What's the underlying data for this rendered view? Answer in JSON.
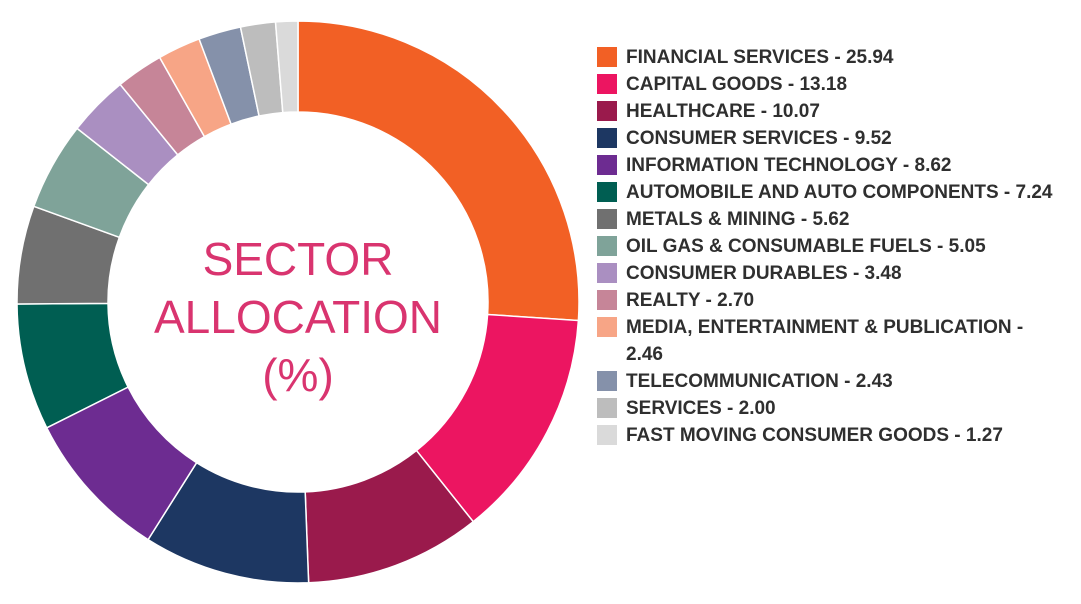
{
  "chart_data": {
    "type": "pie",
    "variant": "donut",
    "title_lines": [
      "SECTOR",
      "ALLOCATION",
      "(%)"
    ],
    "legend_placement": "right",
    "slices": [
      {
        "name": "FINANCIAL SERVICES",
        "value": 25.94,
        "label": "FINANCIAL SERVICES - 25.94",
        "color": "#f26025"
      },
      {
        "name": "CAPITAL GOODS",
        "value": 13.18,
        "label": "CAPITAL GOODS - 13.18",
        "color": "#ec1561"
      },
      {
        "name": "HEALTHCARE",
        "value": 10.07,
        "label": "HEALTHCARE - 10.07",
        "color": "#9a1a4c"
      },
      {
        "name": "CONSUMER SERVICES",
        "value": 9.52,
        "label": "CONSUMER SERVICES - 9.52",
        "color": "#1d3762"
      },
      {
        "name": "INFORMATION TECHNOLOGY",
        "value": 8.62,
        "label": "INFORMATION TECHNOLOGY - 8.62",
        "color": "#6d2c91"
      },
      {
        "name": "AUTOMOBILE AND AUTO COMPONENTS",
        "value": 7.24,
        "label": "AUTOMOBILE AND AUTO COMPONENTS - 7.24",
        "color": "#005e52"
      },
      {
        "name": "METALS & MINING",
        "value": 5.62,
        "label": "METALS & MINING - 5.62",
        "color": "#707070"
      },
      {
        "name": "OIL GAS & CONSUMABLE FUELS",
        "value": 5.05,
        "label": "OIL GAS & CONSUMABLE FUELS - 5.05",
        "color": "#7fa399"
      },
      {
        "name": "CONSUMER DURABLES",
        "value": 3.48,
        "label": "CONSUMER DURABLES - 3.48",
        "color": "#aa8fc1"
      },
      {
        "name": "REALTY",
        "value": 2.7,
        "label": "REALTY - 2.70",
        "color": "#c68598"
      },
      {
        "name": "MEDIA, ENTERTAINMENT & PUBLICATION",
        "value": 2.46,
        "label": "MEDIA, ENTERTAINMENT & PUBLICATION - 2.46",
        "color": "#f7a586"
      },
      {
        "name": "TELECOMMUNICATION",
        "value": 2.43,
        "label": "TELECOMMUNICATION - 2.43",
        "color": "#8591aa"
      },
      {
        "name": "SERVICES",
        "value": 2.0,
        "label": "SERVICES - 2.00",
        "color": "#bdbdbd"
      },
      {
        "name": "FAST MOVING CONSUMER GOODS",
        "value": 1.27,
        "label": "FAST MOVING CONSUMER GOODS - 1.27",
        "color": "#dadada"
      }
    ]
  }
}
